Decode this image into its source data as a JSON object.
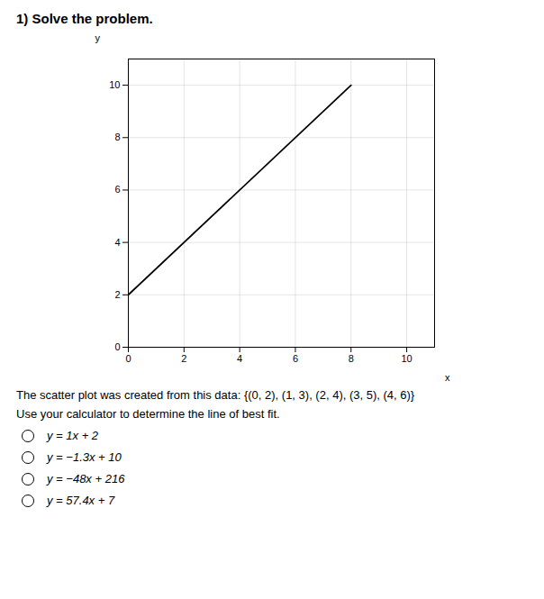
{
  "chart_data": {
    "type": "line",
    "title": "1) Solve the problem.",
    "x": [
      0,
      8
    ],
    "series": [
      {
        "name": "line of best fit",
        "color": "#000000",
        "values": [
          2,
          10
        ]
      }
    ],
    "xlabel": "x",
    "ylabel": "y",
    "xlim": [
      0,
      11
    ],
    "ylim": [
      0,
      11
    ],
    "xticks": [
      0,
      2,
      4,
      6,
      8,
      10
    ],
    "yticks": [
      0,
      2,
      4,
      6,
      8,
      10
    ],
    "grid": true,
    "annotations": [
      "The scatter plot was created from this data: {(0, 2), (1, 3), (2, 4), (3, 5), (4, 6)}",
      "Use your calculator to determine the line of best fit."
    ],
    "choices": [
      "y = 1x + 2",
      "y = −1.3x + 10",
      "y = −48x + 216",
      "y = 57.4x + 7"
    ]
  }
}
